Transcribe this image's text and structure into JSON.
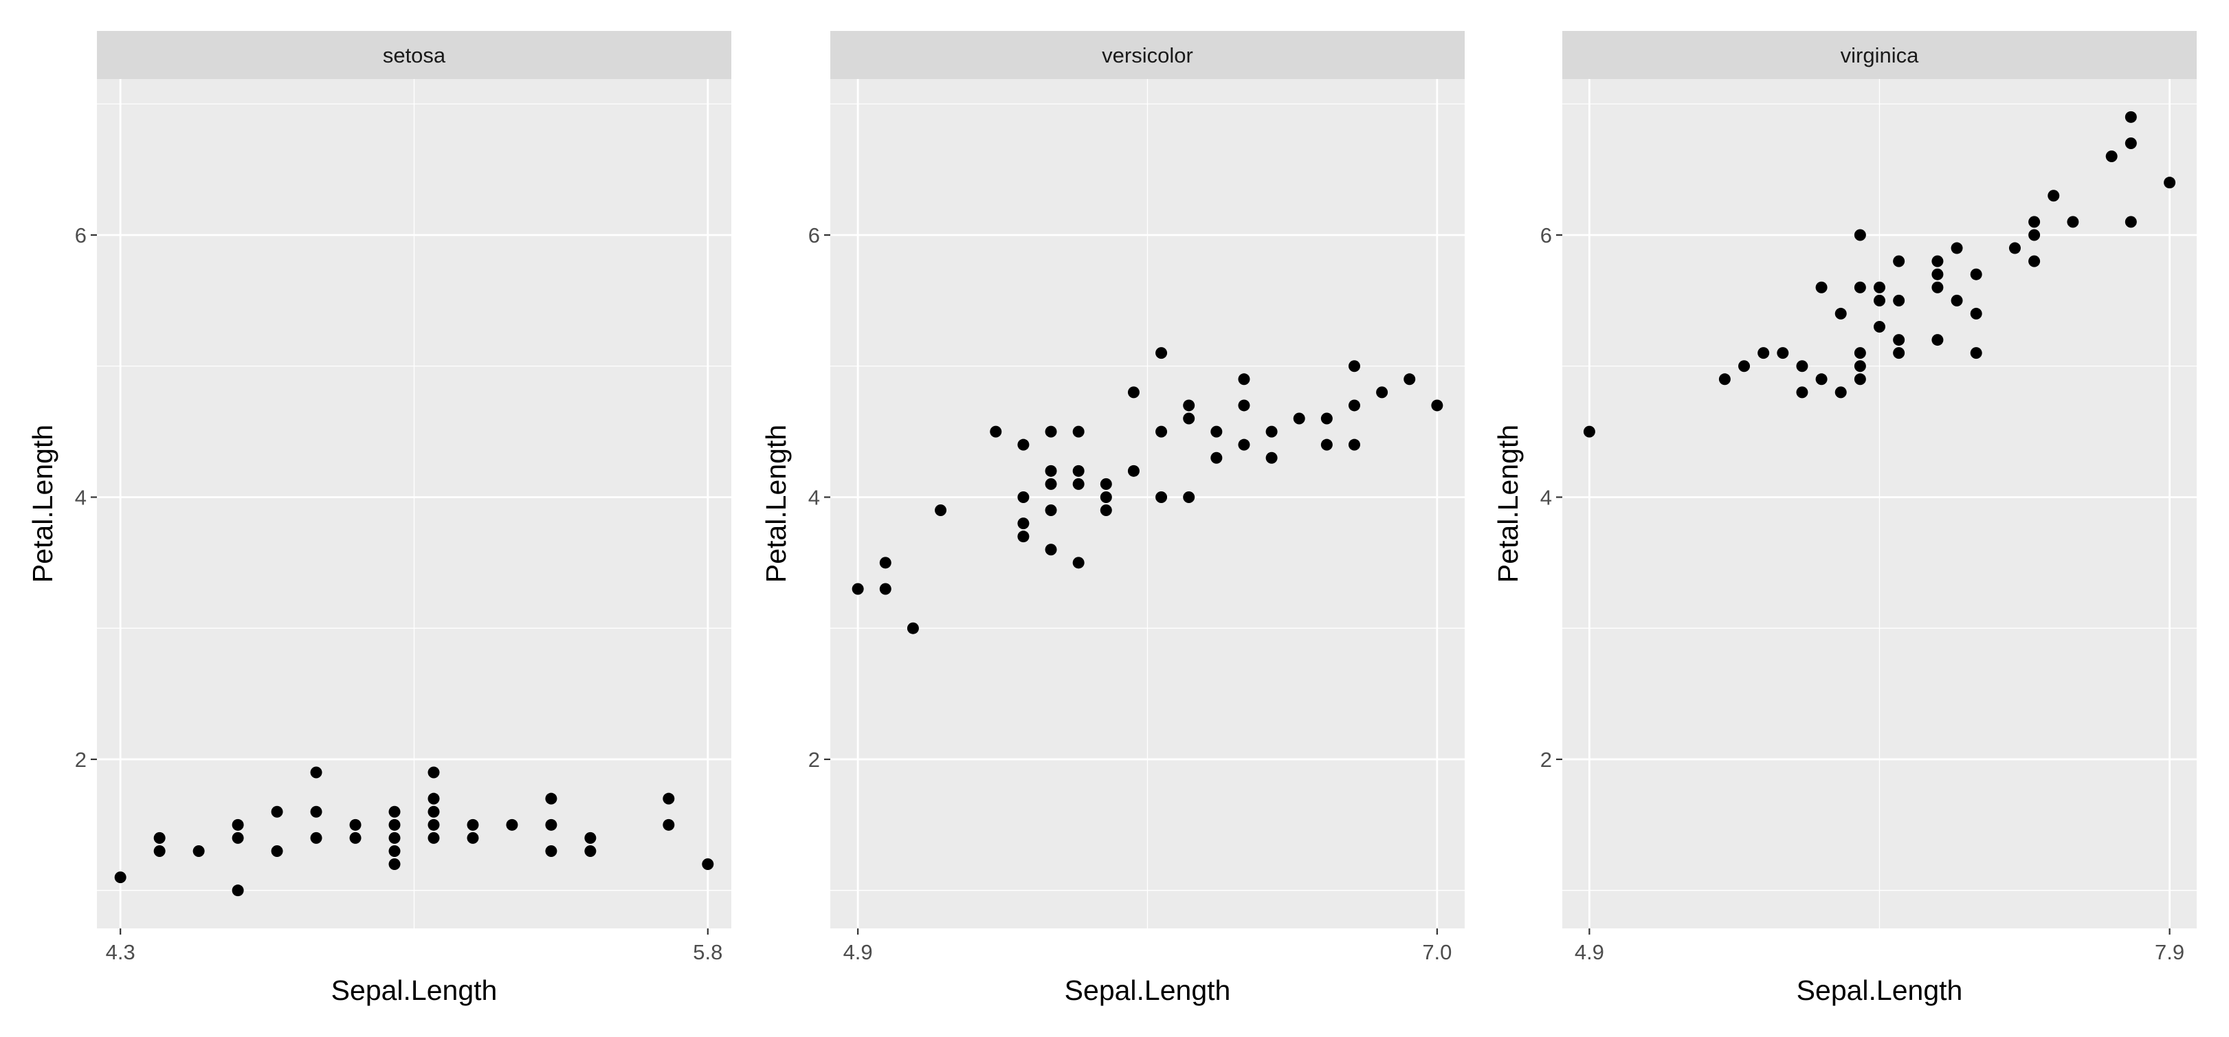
{
  "chart_data": [
    {
      "type": "scatter",
      "panel_title": "setosa",
      "xlabel": "Sepal.Length",
      "ylabel": "Petal.Length",
      "xlim": [
        4.24,
        5.86
      ],
      "ylim": [
        0.71,
        7.19
      ],
      "x_ticks": [
        4.3,
        5.8
      ],
      "x_tick_labels": [
        "4.3",
        "5.8"
      ],
      "y_ticks": [
        2,
        4,
        6
      ],
      "y_tick_labels": [
        "2",
        "4",
        "6"
      ],
      "grid": true,
      "point_color": "#000000",
      "points": [
        [
          4.3,
          1.1
        ],
        [
          4.4,
          1.4
        ],
        [
          4.4,
          1.3
        ],
        [
          4.5,
          1.3
        ],
        [
          4.6,
          1.5
        ],
        [
          4.6,
          1.4
        ],
        [
          4.6,
          1.0
        ],
        [
          4.7,
          1.6
        ],
        [
          4.7,
          1.3
        ],
        [
          4.8,
          1.9
        ],
        [
          4.8,
          1.6
        ],
        [
          4.8,
          1.4
        ],
        [
          4.9,
          1.5
        ],
        [
          4.9,
          1.4
        ],
        [
          5.0,
          1.6
        ],
        [
          5.0,
          1.5
        ],
        [
          5.0,
          1.4
        ],
        [
          5.0,
          1.3
        ],
        [
          5.0,
          1.2
        ],
        [
          5.1,
          1.9
        ],
        [
          5.1,
          1.7
        ],
        [
          5.1,
          1.6
        ],
        [
          5.1,
          1.5
        ],
        [
          5.1,
          1.4
        ],
        [
          5.2,
          1.5
        ],
        [
          5.2,
          1.4
        ],
        [
          5.3,
          1.5
        ],
        [
          5.4,
          1.7
        ],
        [
          5.4,
          1.5
        ],
        [
          5.4,
          1.3
        ],
        [
          5.5,
          1.4
        ],
        [
          5.5,
          1.3
        ],
        [
          5.7,
          1.7
        ],
        [
          5.7,
          1.5
        ],
        [
          5.8,
          1.2
        ]
      ]
    },
    {
      "type": "scatter",
      "panel_title": "versicolor",
      "xlabel": "Sepal.Length",
      "ylabel": "Petal.Length",
      "xlim": [
        4.8,
        7.1
      ],
      "ylim": [
        0.71,
        7.19
      ],
      "x_ticks": [
        4.9,
        7.0
      ],
      "x_tick_labels": [
        "4.9",
        "7.0"
      ],
      "y_ticks": [
        2,
        4,
        6
      ],
      "y_tick_labels": [
        "2",
        "4",
        "6"
      ],
      "grid": true,
      "point_color": "#000000",
      "points": [
        [
          4.9,
          3.3
        ],
        [
          5.0,
          3.5
        ],
        [
          5.0,
          3.3
        ],
        [
          5.1,
          3.0
        ],
        [
          5.2,
          3.9
        ],
        [
          5.4,
          4.5
        ],
        [
          5.5,
          4.4
        ],
        [
          5.5,
          4.0
        ],
        [
          5.5,
          3.8
        ],
        [
          5.5,
          3.7
        ],
        [
          5.6,
          4.5
        ],
        [
          5.6,
          4.2
        ],
        [
          5.6,
          4.1
        ],
        [
          5.6,
          3.9
        ],
        [
          5.6,
          3.6
        ],
        [
          5.7,
          4.5
        ],
        [
          5.7,
          4.2
        ],
        [
          5.7,
          4.1
        ],
        [
          5.7,
          3.5
        ],
        [
          5.8,
          4.1
        ],
        [
          5.8,
          4.0
        ],
        [
          5.8,
          3.9
        ],
        [
          5.9,
          4.8
        ],
        [
          5.9,
          4.2
        ],
        [
          6.0,
          5.1
        ],
        [
          6.0,
          4.5
        ],
        [
          6.0,
          4.0
        ],
        [
          6.1,
          4.7
        ],
        [
          6.1,
          4.6
        ],
        [
          6.1,
          4.0
        ],
        [
          6.2,
          4.5
        ],
        [
          6.2,
          4.3
        ],
        [
          6.3,
          4.9
        ],
        [
          6.3,
          4.7
        ],
        [
          6.3,
          4.4
        ],
        [
          6.4,
          4.5
        ],
        [
          6.4,
          4.3
        ],
        [
          6.5,
          4.6
        ],
        [
          6.6,
          4.6
        ],
        [
          6.6,
          4.4
        ],
        [
          6.7,
          5.0
        ],
        [
          6.7,
          4.7
        ],
        [
          6.7,
          4.4
        ],
        [
          6.8,
          4.8
        ],
        [
          6.9,
          4.9
        ],
        [
          7.0,
          4.7
        ]
      ]
    },
    {
      "type": "scatter",
      "panel_title": "virginica",
      "xlabel": "Sepal.Length",
      "ylabel": "Petal.Length",
      "xlim": [
        4.76,
        8.04
      ],
      "ylim": [
        0.71,
        7.19
      ],
      "x_ticks": [
        4.9,
        7.9
      ],
      "x_tick_labels": [
        "4.9",
        "7.9"
      ],
      "y_ticks": [
        2,
        4,
        6
      ],
      "y_tick_labels": [
        "2",
        "4",
        "6"
      ],
      "grid": true,
      "point_color": "#000000",
      "points": [
        [
          4.9,
          4.5
        ],
        [
          5.6,
          4.9
        ],
        [
          5.7,
          5.0
        ],
        [
          5.8,
          5.1
        ],
        [
          5.9,
          5.1
        ],
        [
          6.0,
          5.0
        ],
        [
          6.0,
          4.8
        ],
        [
          6.1,
          5.6
        ],
        [
          6.1,
          4.9
        ],
        [
          6.2,
          5.4
        ],
        [
          6.2,
          4.8
        ],
        [
          6.3,
          6.0
        ],
        [
          6.3,
          5.6
        ],
        [
          6.3,
          5.1
        ],
        [
          6.3,
          5.0
        ],
        [
          6.3,
          4.9
        ],
        [
          6.4,
          5.6
        ],
        [
          6.4,
          5.5
        ],
        [
          6.4,
          5.3
        ],
        [
          6.5,
          5.8
        ],
        [
          6.5,
          5.5
        ],
        [
          6.5,
          5.2
        ],
        [
          6.5,
          5.1
        ],
        [
          6.7,
          5.8
        ],
        [
          6.7,
          5.7
        ],
        [
          6.7,
          5.6
        ],
        [
          6.7,
          5.2
        ],
        [
          6.8,
          5.9
        ],
        [
          6.8,
          5.5
        ],
        [
          6.9,
          5.7
        ],
        [
          6.9,
          5.4
        ],
        [
          6.9,
          5.1
        ],
        [
          7.1,
          5.9
        ],
        [
          7.2,
          6.1
        ],
        [
          7.2,
          6.0
        ],
        [
          7.2,
          5.8
        ],
        [
          7.3,
          6.3
        ],
        [
          7.4,
          6.1
        ],
        [
          7.6,
          6.6
        ],
        [
          7.7,
          6.9
        ],
        [
          7.7,
          6.7
        ],
        [
          7.7,
          6.1
        ],
        [
          7.9,
          6.4
        ]
      ]
    }
  ]
}
